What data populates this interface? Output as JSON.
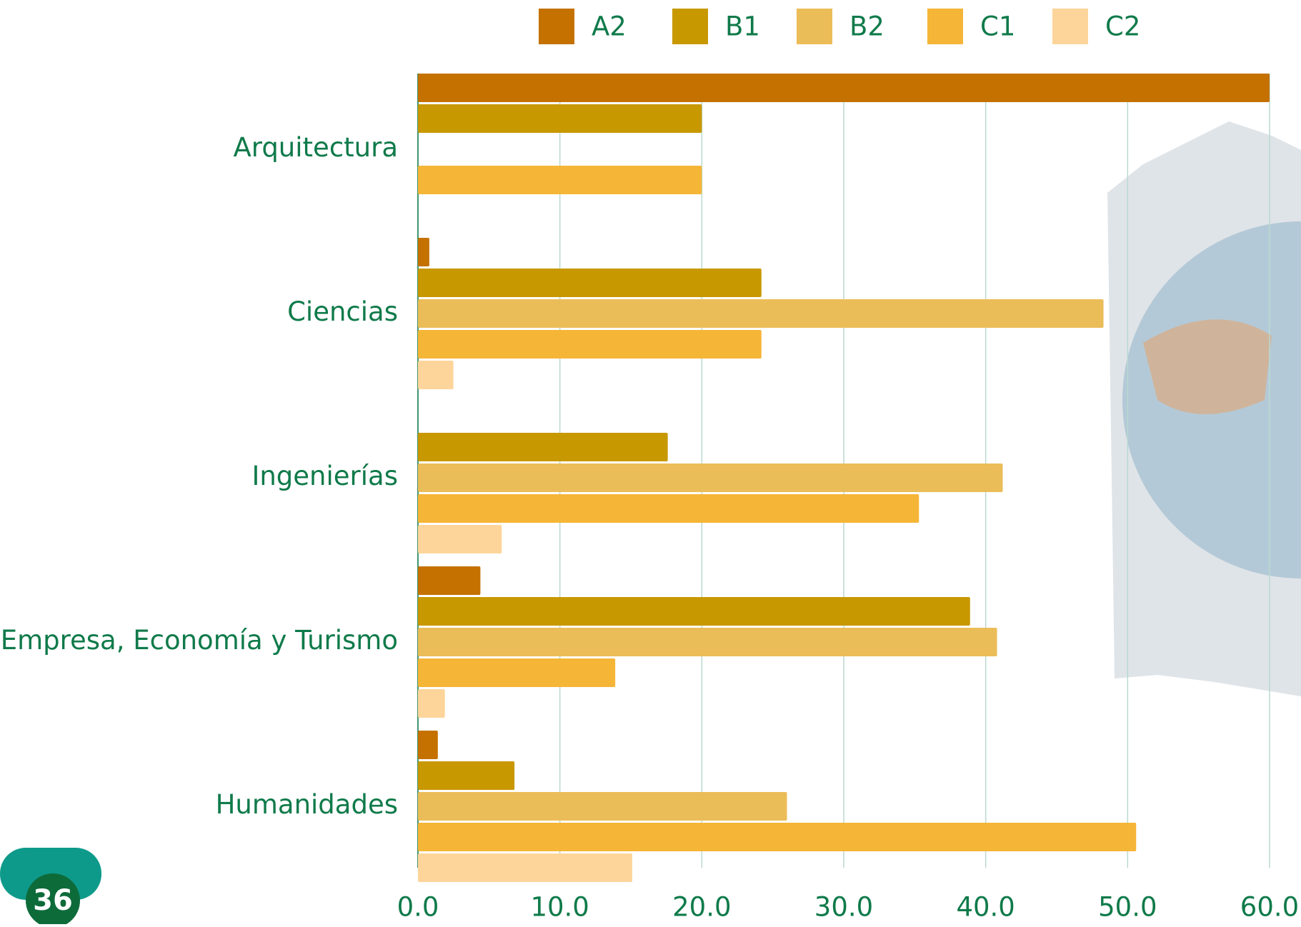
{
  "page_number": "36",
  "chart_data": {
    "type": "hbar",
    "categories": [
      "Arquitectura",
      "Ciencias",
      "Ingenierías",
      "Empresa, Economía y Turismo",
      "Humanidades"
    ],
    "series": [
      {
        "name": "A2",
        "color": "#c47100",
        "values": [
          60.0,
          0.8,
          0,
          4.4,
          1.4
        ]
      },
      {
        "name": "B1",
        "color": "#c89800",
        "values": [
          20.0,
          24.2,
          17.6,
          38.9,
          6.8
        ]
      },
      {
        "name": "B2",
        "color": "#ebbd58",
        "values": [
          0,
          48.3,
          41.2,
          40.8,
          26.0
        ]
      },
      {
        "name": "C1",
        "color": "#f5b537",
        "values": [
          20.0,
          24.2,
          35.3,
          13.9,
          50.6
        ]
      },
      {
        "name": "C2",
        "color": "#fdd59b",
        "values": [
          0,
          2.5,
          5.9,
          1.9,
          15.1
        ]
      }
    ],
    "xlim": [
      0,
      60
    ],
    "xticks": [
      {
        "value": 0,
        "label": "0.0"
      },
      {
        "value": 10,
        "label": "10.0"
      },
      {
        "value": 20,
        "label": "20.0"
      },
      {
        "value": 30,
        "label": "30.0"
      },
      {
        "value": 40,
        "label": "40.0"
      },
      {
        "value": 50,
        "label": "50.0"
      },
      {
        "value": 60,
        "label": "60.0"
      }
    ],
    "grid": true,
    "legend": "top"
  }
}
